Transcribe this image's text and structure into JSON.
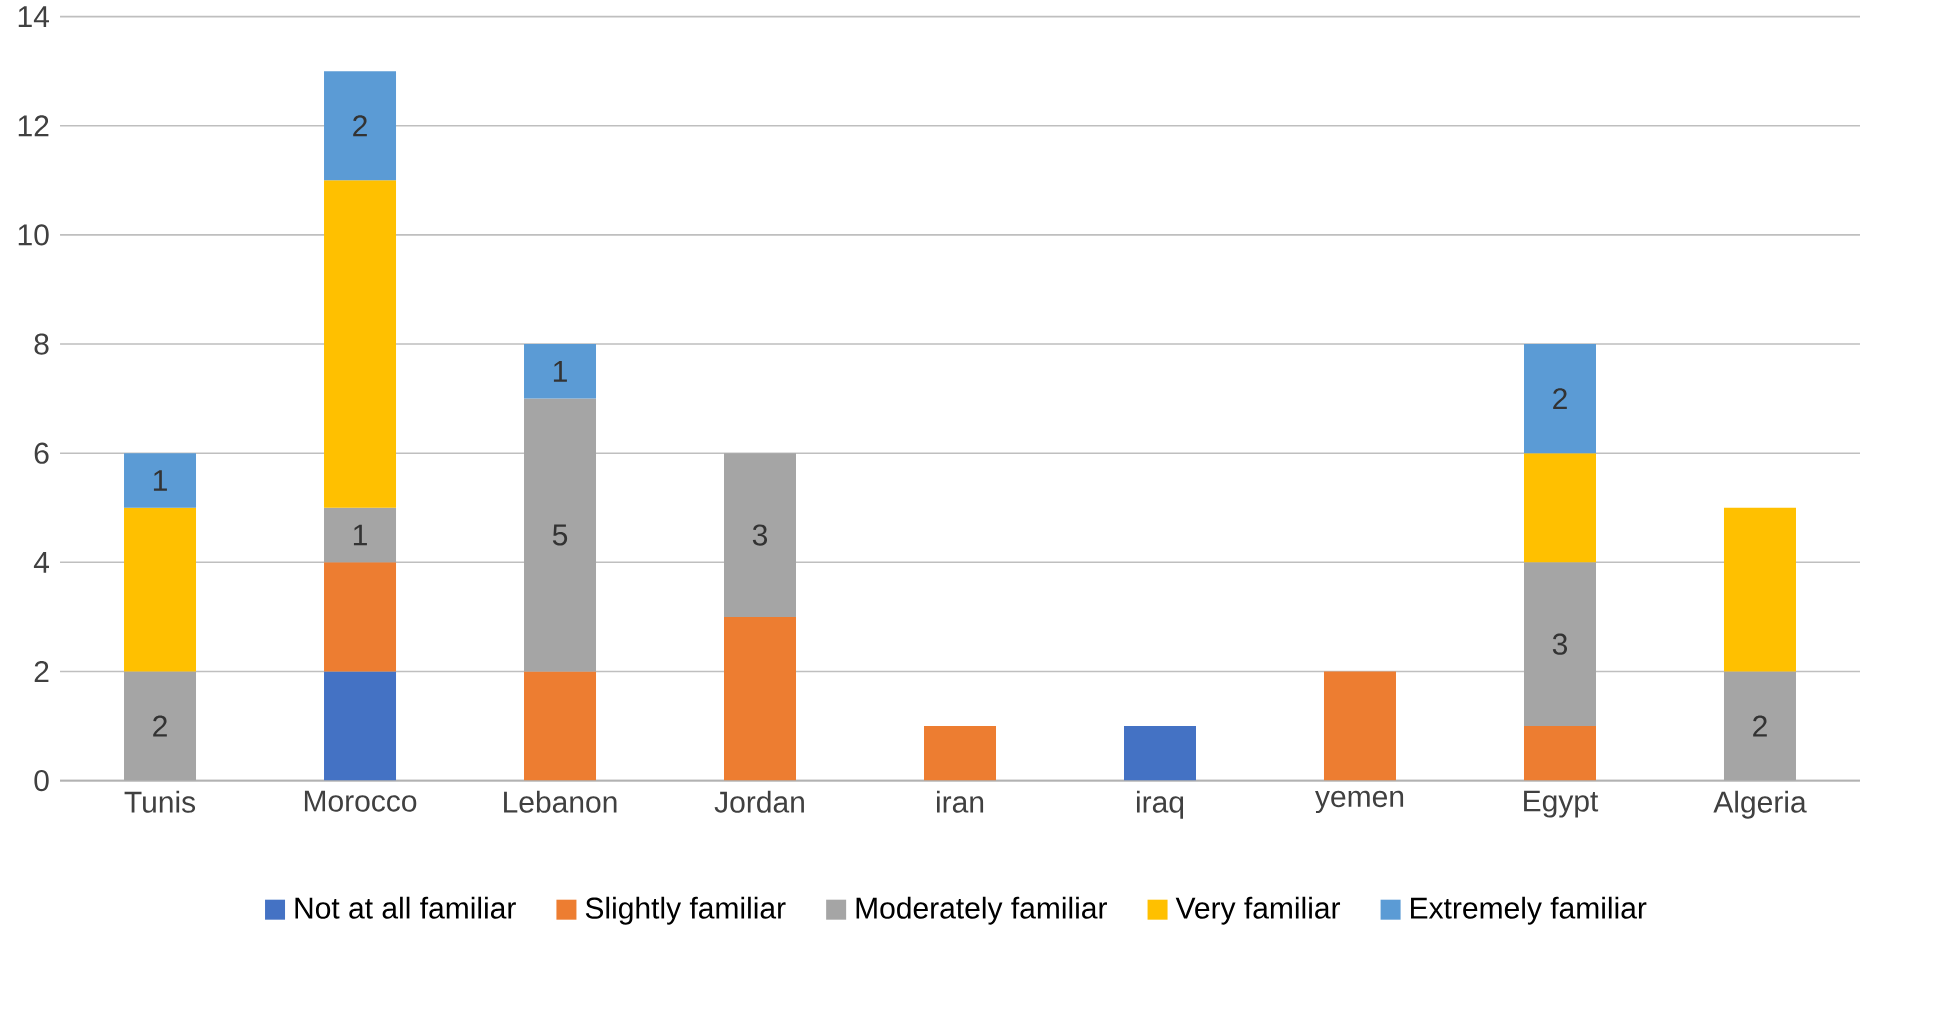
{
  "chart_data": {
    "type": "bar",
    "stacked": true,
    "categories": [
      "Tunis",
      "Morocco",
      "Lebanon",
      "Jordan",
      "iran",
      "iraq",
      "yemen",
      "Egypt",
      "Algeria"
    ],
    "series": [
      {
        "name": "Not at all familiar",
        "color": "#4472c4",
        "values": [
          null,
          2,
          null,
          null,
          null,
          1,
          null,
          null,
          null
        ]
      },
      {
        "name": "Slightly familiar",
        "color": "#ed7d31",
        "values": [
          null,
          2,
          2,
          3,
          1,
          null,
          2,
          1,
          null
        ]
      },
      {
        "name": "Moderately familiar",
        "color": "#a5a5a5",
        "values": [
          2,
          1,
          5,
          3,
          null,
          null,
          null,
          3,
          2
        ],
        "value_labels": [
          "2",
          "1",
          "5",
          "3",
          null,
          null,
          null,
          "3",
          "2"
        ]
      },
      {
        "name": "Very familiar",
        "color": "#ffc000",
        "values": [
          3,
          6,
          null,
          null,
          null,
          null,
          null,
          2,
          3
        ]
      },
      {
        "name": "Extremely familiar",
        "color": "#5b9bd5",
        "values": [
          1,
          2,
          1,
          null,
          null,
          null,
          null,
          2,
          null
        ],
        "value_labels": [
          "1",
          "2",
          "1",
          null,
          null,
          null,
          null,
          "2",
          null
        ]
      }
    ],
    "ylim": [
      0,
      14
    ],
    "yticks": [
      0,
      2,
      4,
      6,
      8,
      10,
      12,
      14
    ],
    "grid": "y",
    "legend": "bottom"
  }
}
